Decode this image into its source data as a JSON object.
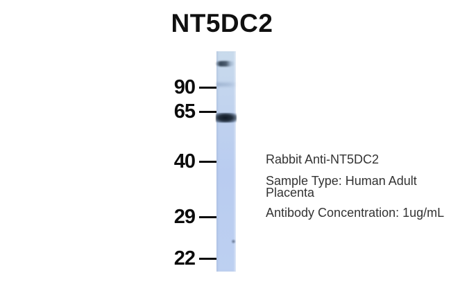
{
  "figure": {
    "title": "NT5DC2",
    "markers": [
      {
        "label": "90"
      },
      {
        "label": "65"
      },
      {
        "label": "40"
      },
      {
        "label": "29"
      },
      {
        "label": "22"
      }
    ],
    "bands": [
      {
        "name": "high-molecular-weight-band",
        "position": "above 90 marker",
        "intensity": "medium"
      },
      {
        "name": "90-level-band",
        "position": "at 90 marker",
        "intensity": "very faint"
      },
      {
        "name": "main-band",
        "position": "just below 65 marker",
        "intensity": "strong"
      },
      {
        "name": "speck",
        "position": "between 29 and 22 markers",
        "intensity": "very faint"
      }
    ],
    "annotations": {
      "antibody": "Rabbit Anti-NT5DC2",
      "sample_type_line1": "Sample Type: Human Adult",
      "sample_type_line2": "Placenta",
      "concentration": "Antibody Concentration: 1ug/mL"
    },
    "colors": {
      "background": "#ffffff",
      "lane_blue": "#bfd2ef",
      "band_dark": "#1b2835",
      "marker_text": "#0c0c0c",
      "annotation_text": "#333333"
    }
  }
}
